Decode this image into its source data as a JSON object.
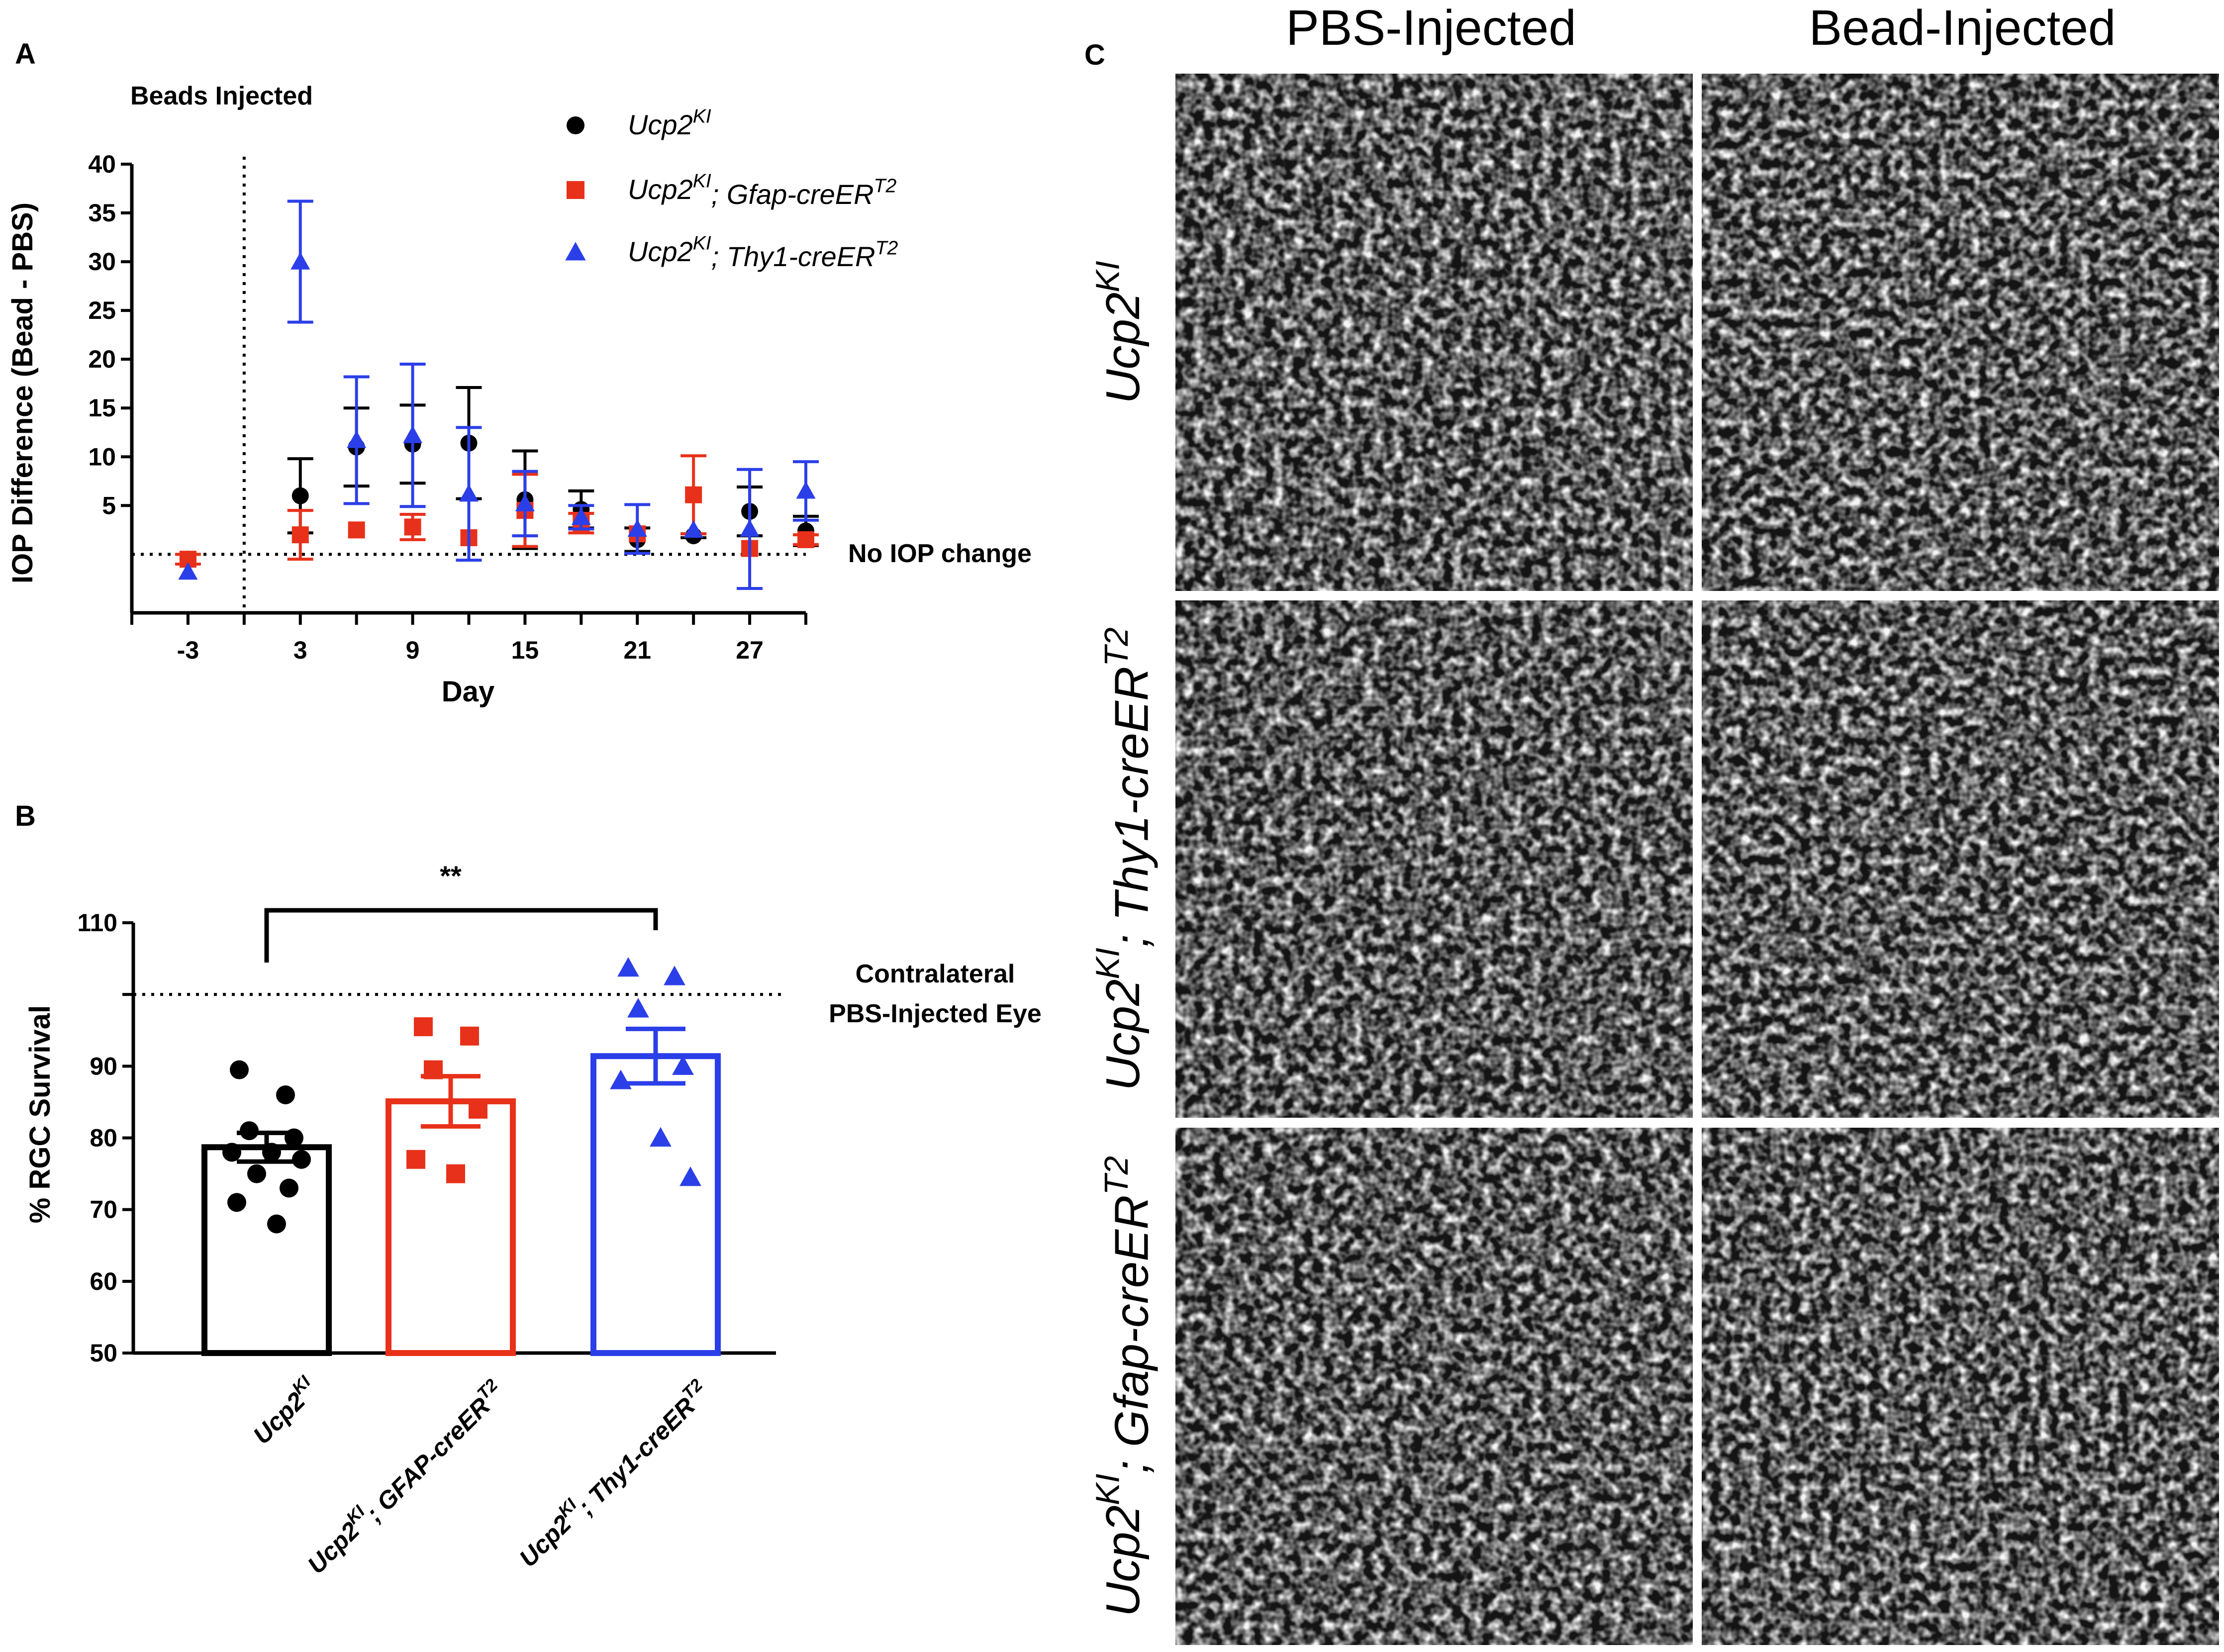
{
  "panels": {
    "a": "A",
    "b": "B",
    "c": "C"
  },
  "colors": {
    "black": "#000000",
    "red": "#e8311a",
    "blue": "#2b3fe8"
  },
  "chart_data": [
    {
      "type": "scatter",
      "panel": "A",
      "title": "",
      "xlabel": "Day",
      "ylabel": "IOP Difference (Bead - PBS)",
      "xlim": [
        -6,
        30
      ],
      "ylim": [
        -6,
        40
      ],
      "xticks": [
        -3,
        3,
        9,
        15,
        21,
        27
      ],
      "yticks": [
        5,
        10,
        15,
        20,
        25,
        30,
        35,
        40
      ],
      "annotations": {
        "injection": "Beads Injected",
        "baseline": "No IOP change"
      },
      "legend_position": "top-right",
      "series": [
        {
          "name": "Ucp2KI",
          "base": "Ucp2",
          "sup": "KI",
          "rest": "",
          "rest_sup": "",
          "color": "#000000",
          "marker": "circle",
          "points": [
            {
              "x": -3,
              "y": -0.5,
              "err": 0
            },
            {
              "x": 3,
              "y": 6,
              "err": 3.8
            },
            {
              "x": 6,
              "y": 11,
              "err": 4
            },
            {
              "x": 9,
              "y": 11.3,
              "err": 4
            },
            {
              "x": 12,
              "y": 11.4,
              "err": 5.7
            },
            {
              "x": 15,
              "y": 5.6,
              "err": 5
            },
            {
              "x": 18,
              "y": 4.6,
              "err": 1.9
            },
            {
              "x": 21,
              "y": 1.5,
              "err": 1.2
            },
            {
              "x": 24,
              "y": 1.9,
              "err": 0.2
            },
            {
              "x": 27,
              "y": 4.4,
              "err": 2.5
            },
            {
              "x": 30,
              "y": 2.4,
              "err": 1.5
            }
          ]
        },
        {
          "name": "Ucp2KI; Gfap-creERT2",
          "base": "Ucp2",
          "sup": "KI",
          "rest": "; Gfap-creER",
          "rest_sup": "T2",
          "color": "#e8311a",
          "marker": "square",
          "points": [
            {
              "x": -3,
              "y": -0.5,
              "err": 0.5
            },
            {
              "x": 3,
              "y": 2,
              "err": 2.5
            },
            {
              "x": 6,
              "y": 2.5,
              "err": 0
            },
            {
              "x": 9,
              "y": 2.8,
              "err": 1.3
            },
            {
              "x": 12,
              "y": 1.7,
              "err": 0
            },
            {
              "x": 15,
              "y": 4.5,
              "err": 3.7
            },
            {
              "x": 18,
              "y": 3.2,
              "err": 1
            },
            {
              "x": 21,
              "y": 2.1,
              "err": 0
            },
            {
              "x": 24,
              "y": 6.1,
              "err": 4
            },
            {
              "x": 27,
              "y": 0.6,
              "err": 0
            },
            {
              "x": 30,
              "y": 1.5,
              "err": 0.5
            }
          ]
        },
        {
          "name": "Ucp2KI; Thy1-creERT2",
          "base": "Ucp2",
          "sup": "KI",
          "rest": "; Thy1-creER",
          "rest_sup": "T2",
          "color": "#2b3fe8",
          "marker": "triangle",
          "points": [
            {
              "x": -3,
              "y": -1.8,
              "err": 0
            },
            {
              "x": 3,
              "y": 30,
              "err": 6.2
            },
            {
              "x": 6,
              "y": 11.7,
              "err": 6.5
            },
            {
              "x": 9,
              "y": 12.2,
              "err": 7.3
            },
            {
              "x": 12,
              "y": 6.2,
              "err": 6.8
            },
            {
              "x": 15,
              "y": 5.2,
              "err": 3.3
            },
            {
              "x": 18,
              "y": 3.8,
              "err": 1.2
            },
            {
              "x": 21,
              "y": 2.6,
              "err": 2.5
            },
            {
              "x": 24,
              "y": 2.5,
              "err": 0
            },
            {
              "x": 27,
              "y": 2.6,
              "err": 6.1
            },
            {
              "x": 30,
              "y": 6.5,
              "err": 3
            }
          ]
        }
      ]
    },
    {
      "type": "bar",
      "panel": "B",
      "title": "",
      "xlabel": "",
      "ylabel": "% RGC Survival",
      "ylim": [
        50,
        110
      ],
      "yticks": [
        50,
        60,
        70,
        80,
        90,
        110
      ],
      "annotations": {
        "reference_line_value": 100,
        "reference_line_line1": "Contralateral",
        "reference_line_line2": "PBS-Injected Eye",
        "significance": "**"
      },
      "categories": [
        {
          "base": "Ucp2",
          "sup": "KI",
          "rest": "",
          "rest_sup": ""
        },
        {
          "base": "Ucp2",
          "sup": "KI",
          "rest": "; GFAP-creER",
          "rest_sup": "T2"
        },
        {
          "base": "Ucp2",
          "sup": "KI",
          "rest": "; Thy1-creER",
          "rest_sup": "T2"
        }
      ],
      "values": [
        78.7,
        85.1,
        91.4
      ],
      "sem": [
        2,
        3.5,
        3.8
      ],
      "colors": [
        "#000000",
        "#e8311a",
        "#2b3fe8"
      ],
      "markers": [
        "circle",
        "square",
        "triangle"
      ],
      "points": [
        [
          89.5,
          86,
          81,
          80,
          78,
          78,
          77,
          75,
          73,
          71,
          68
        ],
        [
          95.5,
          94.2,
          89.5,
          84,
          77,
          75
        ],
        [
          103.7,
          102.5,
          98,
          90,
          88,
          80,
          74.5
        ]
      ]
    }
  ],
  "panel_c": {
    "column_headers": [
      "PBS-Injected",
      "Bead-Injected"
    ],
    "row_labels": [
      {
        "base": "Ucp2",
        "sup": "KI",
        "rest": "",
        "rest_sup": ""
      },
      {
        "base": "Ucp2",
        "sup": "KI",
        "rest": "; Thy1-creER",
        "rest_sup": "T2"
      },
      {
        "base": "Ucp2",
        "sup": "KI",
        "rest": "; Gfap-creER",
        "rest_sup": "T2"
      }
    ]
  }
}
